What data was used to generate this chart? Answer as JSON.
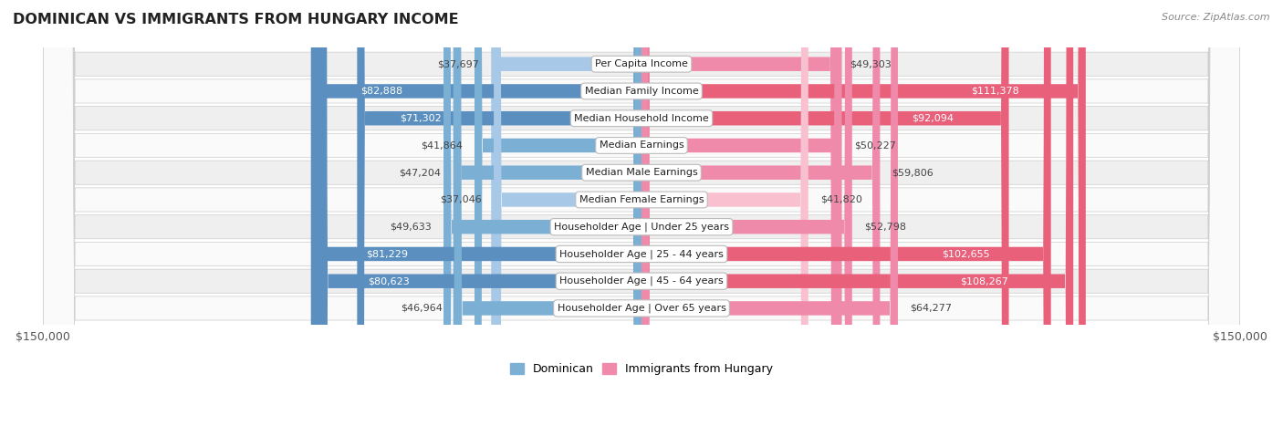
{
  "title": "DOMINICAN VS IMMIGRANTS FROM HUNGARY INCOME",
  "source": "Source: ZipAtlas.com",
  "categories": [
    "Per Capita Income",
    "Median Family Income",
    "Median Household Income",
    "Median Earnings",
    "Median Male Earnings",
    "Median Female Earnings",
    "Householder Age | Under 25 years",
    "Householder Age | 25 - 44 years",
    "Householder Age | 45 - 64 years",
    "Householder Age | Over 65 years"
  ],
  "dominican": [
    37697,
    82888,
    71302,
    41864,
    47204,
    37046,
    49633,
    81229,
    80623,
    46964
  ],
  "hungary": [
    49303,
    111378,
    92094,
    50227,
    59806,
    41820,
    52798,
    102655,
    108267,
    64277
  ],
  "max_val": 150000,
  "color_dominican_light": "#a8c8e8",
  "color_dominican_mid": "#7bafd4",
  "color_dominican_dark": "#5b8fbf",
  "color_hungary_light": "#f9c0d0",
  "color_hungary_mid": "#f08aaa",
  "color_hungary_dark": "#e8607a",
  "bg_row_even": "#efefef",
  "bg_row_odd": "#fafafa",
  "label_outside_color": "#444444",
  "label_inside_color": "#ffffff",
  "inside_threshold_dom": 55000,
  "inside_threshold_hun": 65000
}
